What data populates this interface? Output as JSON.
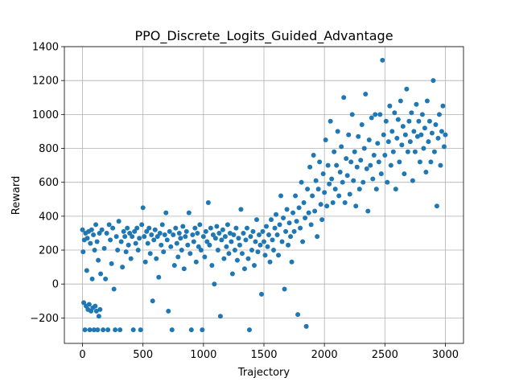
{
  "chart_data": {
    "type": "scatter",
    "title": "PPO_Discrete_Logits_Guided_Advantage",
    "xlabel": "Trajectory",
    "ylabel": "Reward",
    "xlim": [
      -150,
      3150
    ],
    "ylim": [
      -350,
      1400
    ],
    "xticks": [
      0,
      500,
      1000,
      1500,
      2000,
      2500,
      3000
    ],
    "yticks": [
      -200,
      0,
      200,
      400,
      600,
      800,
      1000,
      1200,
      1400
    ],
    "grid": true,
    "series": [
      {
        "color": "#1f77b4",
        "points": [
          [
            0,
            320
          ],
          [
            5,
            190
          ],
          [
            10,
            -110
          ],
          [
            15,
            260
          ],
          [
            20,
            -270
          ],
          [
            25,
            300
          ],
          [
            30,
            -130
          ],
          [
            35,
            80
          ],
          [
            40,
            270
          ],
          [
            45,
            -150
          ],
          [
            50,
            310
          ],
          [
            55,
            -120
          ],
          [
            60,
            -270
          ],
          [
            65,
            240
          ],
          [
            70,
            -160
          ],
          [
            75,
            320
          ],
          [
            80,
            30
          ],
          [
            85,
            -140
          ],
          [
            90,
            290
          ],
          [
            95,
            -270
          ],
          [
            100,
            200
          ],
          [
            105,
            -130
          ],
          [
            110,
            350
          ],
          [
            115,
            -160
          ],
          [
            120,
            250
          ],
          [
            125,
            -270
          ],
          [
            130,
            140
          ],
          [
            135,
            -190
          ],
          [
            140,
            300
          ],
          [
            145,
            -150
          ],
          [
            150,
            60
          ],
          [
            160,
            320
          ],
          [
            170,
            -270
          ],
          [
            180,
            210
          ],
          [
            190,
            30
          ],
          [
            200,
            300
          ],
          [
            210,
            -270
          ],
          [
            220,
            350
          ],
          [
            230,
            260
          ],
          [
            240,
            120
          ],
          [
            250,
            330
          ],
          [
            260,
            -30
          ],
          [
            270,
            -270
          ],
          [
            280,
            280
          ],
          [
            290,
            200
          ],
          [
            300,
            370
          ],
          [
            310,
            -270
          ],
          [
            320,
            250
          ],
          [
            330,
            100
          ],
          [
            340,
            310
          ],
          [
            350,
            280
          ],
          [
            360,
            190
          ],
          [
            370,
            330
          ],
          [
            380,
            230
          ],
          [
            390,
            300
          ],
          [
            400,
            150
          ],
          [
            410,
            280
          ],
          [
            420,
            -270
          ],
          [
            430,
            310
          ],
          [
            440,
            240
          ],
          [
            450,
            330
          ],
          [
            460,
            200
          ],
          [
            470,
            270
          ],
          [
            480,
            -270
          ],
          [
            490,
            350
          ],
          [
            500,
            450
          ],
          [
            510,
            280
          ],
          [
            520,
            130
          ],
          [
            530,
            310
          ],
          [
            540,
            240
          ],
          [
            550,
            330
          ],
          [
            560,
            180
          ],
          [
            570,
            290
          ],
          [
            580,
            -100
          ],
          [
            590,
            260
          ],
          [
            600,
            320
          ],
          [
            610,
            150
          ],
          [
            620,
            280
          ],
          [
            630,
            40
          ],
          [
            640,
            300
          ],
          [
            650,
            230
          ],
          [
            660,
            350
          ],
          [
            670,
            190
          ],
          [
            680,
            290
          ],
          [
            690,
            420
          ],
          [
            700,
            260
          ],
          [
            710,
            -160
          ],
          [
            720,
            310
          ],
          [
            730,
            220
          ],
          [
            740,
            -270
          ],
          [
            750,
            290
          ],
          [
            760,
            110
          ],
          [
            770,
            330
          ],
          [
            780,
            240
          ],
          [
            790,
            160
          ],
          [
            800,
            300
          ],
          [
            810,
            270
          ],
          [
            820,
            200
          ],
          [
            830,
            340
          ],
          [
            840,
            90
          ],
          [
            850,
            280
          ],
          [
            860,
            310
          ],
          [
            870,
            230
          ],
          [
            880,
            420
          ],
          [
            890,
            180
          ],
          [
            900,
            -270
          ],
          [
            910,
            290
          ],
          [
            920,
            250
          ],
          [
            930,
            330
          ],
          [
            940,
            130
          ],
          [
            950,
            300
          ],
          [
            960,
            220
          ],
          [
            970,
            350
          ],
          [
            980,
            200
          ],
          [
            990,
            -270
          ],
          [
            1000,
            280
          ],
          [
            1010,
            160
          ],
          [
            1020,
            310
          ],
          [
            1030,
            250
          ],
          [
            1040,
            480
          ],
          [
            1050,
            230
          ],
          [
            1060,
            330
          ],
          [
            1070,
            110
          ],
          [
            1080,
            290
          ],
          [
            1090,
            0
          ],
          [
            1100,
            270
          ],
          [
            1110,
            340
          ],
          [
            1120,
            200
          ],
          [
            1130,
            300
          ],
          [
            1140,
            -190
          ],
          [
            1150,
            260
          ],
          [
            1160,
            320
          ],
          [
            1170,
            150
          ],
          [
            1180,
            280
          ],
          [
            1190,
            220
          ],
          [
            1200,
            350
          ],
          [
            1210,
            180
          ],
          [
            1220,
            300
          ],
          [
            1230,
            250
          ],
          [
            1240,
            60
          ],
          [
            1250,
            290
          ],
          [
            1260,
            200
          ],
          [
            1270,
            330
          ],
          [
            1280,
            140
          ],
          [
            1290,
            270
          ],
          [
            1300,
            230
          ],
          [
            1310,
            440
          ],
          [
            1320,
            180
          ],
          [
            1330,
            300
          ],
          [
            1340,
            90
          ],
          [
            1350,
            260
          ],
          [
            1360,
            330
          ],
          [
            1370,
            150
          ],
          [
            1380,
            -270
          ],
          [
            1390,
            280
          ],
          [
            1400,
            200
          ],
          [
            1410,
            310
          ],
          [
            1420,
            110
          ],
          [
            1430,
            250
          ],
          [
            1440,
            380
          ],
          [
            1450,
            190
          ],
          [
            1460,
            290
          ],
          [
            1470,
            230
          ],
          [
            1480,
            -60
          ],
          [
            1490,
            310
          ],
          [
            1500,
            250
          ],
          [
            1510,
            170
          ],
          [
            1520,
            340
          ],
          [
            1530,
            220
          ],
          [
            1540,
            290
          ],
          [
            1550,
            130
          ],
          [
            1560,
            380
          ],
          [
            1570,
            260
          ],
          [
            1580,
            200
          ],
          [
            1590,
            330
          ],
          [
            1600,
            410
          ],
          [
            1610,
            290
          ],
          [
            1620,
            170
          ],
          [
            1630,
            350
          ],
          [
            1640,
            520
          ],
          [
            1650,
            250
          ],
          [
            1660,
            390
          ],
          [
            1670,
            -30
          ],
          [
            1680,
            310
          ],
          [
            1690,
            440
          ],
          [
            1700,
            230
          ],
          [
            1710,
            360
          ],
          [
            1720,
            280
          ],
          [
            1730,
            130
          ],
          [
            1740,
            420
          ],
          [
            1750,
            310
          ],
          [
            1760,
            520
          ],
          [
            1770,
            370
          ],
          [
            1780,
            -180
          ],
          [
            1790,
            450
          ],
          [
            1800,
            330
          ],
          [
            1810,
            600
          ],
          [
            1820,
            250
          ],
          [
            1830,
            480
          ],
          [
            1840,
            390
          ],
          [
            1850,
            -250
          ],
          [
            1860,
            560
          ],
          [
            1870,
            420
          ],
          [
            1880,
            690
          ],
          [
            1890,
            350
          ],
          [
            1900,
            520
          ],
          [
            1910,
            760
          ],
          [
            1920,
            430
          ],
          [
            1930,
            610
          ],
          [
            1940,
            280
          ],
          [
            1950,
            560
          ],
          [
            1960,
            720
          ],
          [
            1970,
            470
          ],
          [
            1980,
            380
          ],
          [
            1990,
            650
          ],
          [
            2000,
            540
          ],
          [
            2010,
            850
          ],
          [
            2020,
            460
          ],
          [
            2030,
            700
          ],
          [
            2040,
            590
          ],
          [
            2050,
            960
          ],
          [
            2060,
            620
          ],
          [
            2070,
            480
          ],
          [
            2080,
            780
          ],
          [
            2090,
            560
          ],
          [
            2100,
            700
          ],
          [
            2110,
            900
          ],
          [
            2120,
            520
          ],
          [
            2130,
            660
          ],
          [
            2140,
            810
          ],
          [
            2150,
            600
          ],
          [
            2160,
            1100
          ],
          [
            2170,
            480
          ],
          [
            2180,
            740
          ],
          [
            2190,
            640
          ],
          [
            2200,
            880
          ],
          [
            2210,
            530
          ],
          [
            2220,
            720
          ],
          [
            2230,
            1000
          ],
          [
            2240,
            610
          ],
          [
            2250,
            780
          ],
          [
            2260,
            460
          ],
          [
            2270,
            690
          ],
          [
            2280,
            870
          ],
          [
            2290,
            560
          ],
          [
            2300,
            730
          ],
          [
            2310,
            940
          ],
          [
            2320,
            600
          ],
          [
            2330,
            800
          ],
          [
            2340,
            1120
          ],
          [
            2350,
            680
          ],
          [
            2360,
            430
          ],
          [
            2370,
            850
          ],
          [
            2380,
            700
          ],
          [
            2390,
            980
          ],
          [
            2400,
            620
          ],
          [
            2410,
            760
          ],
          [
            2420,
            1000
          ],
          [
            2430,
            560
          ],
          [
            2440,
            830
          ],
          [
            2450,
            720
          ],
          [
            2460,
            1000
          ],
          [
            2470,
            650
          ],
          [
            2480,
            1320
          ],
          [
            2490,
            880
          ],
          [
            2500,
            760
          ],
          [
            2510,
            960
          ],
          [
            2520,
            600
          ],
          [
            2530,
            840
          ],
          [
            2540,
            1050
          ],
          [
            2550,
            700
          ],
          [
            2560,
            900
          ],
          [
            2570,
            780
          ],
          [
            2580,
            1010
          ],
          [
            2590,
            560
          ],
          [
            2600,
            860
          ],
          [
            2610,
            970
          ],
          [
            2620,
            720
          ],
          [
            2630,
            1080
          ],
          [
            2640,
            820
          ],
          [
            2650,
            930
          ],
          [
            2660,
            650
          ],
          [
            2670,
            880
          ],
          [
            2680,
            1150
          ],
          [
            2690,
            780
          ],
          [
            2700,
            960
          ],
          [
            2710,
            840
          ],
          [
            2720,
            1010
          ],
          [
            2730,
            610
          ],
          [
            2740,
            900
          ],
          [
            2750,
            780
          ],
          [
            2760,
            1060
          ],
          [
            2770,
            870
          ],
          [
            2780,
            960
          ],
          [
            2790,
            720
          ],
          [
            2800,
            880
          ],
          [
            2810,
            1000
          ],
          [
            2820,
            800
          ],
          [
            2830,
            920
          ],
          [
            2840,
            660
          ],
          [
            2850,
            1080
          ],
          [
            2860,
            840
          ],
          [
            2870,
            960
          ],
          [
            2880,
            720
          ],
          [
            2890,
            890
          ],
          [
            2900,
            1200
          ],
          [
            2910,
            780
          ],
          [
            2920,
            940
          ],
          [
            2930,
            460
          ],
          [
            2940,
            860
          ],
          [
            2950,
            1000
          ],
          [
            2960,
            700
          ],
          [
            2970,
            900
          ],
          [
            2980,
            1050
          ],
          [
            2990,
            810
          ],
          [
            3000,
            880
          ]
        ]
      }
    ]
  }
}
